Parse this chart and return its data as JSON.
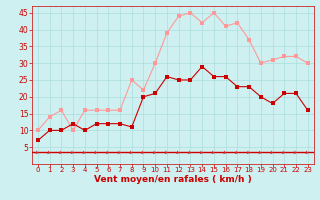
{
  "x": [
    0,
    1,
    2,
    3,
    4,
    5,
    6,
    7,
    8,
    9,
    10,
    11,
    12,
    13,
    14,
    15,
    16,
    17,
    18,
    19,
    20,
    21,
    22,
    23
  ],
  "vent_moyen": [
    7,
    10,
    10,
    12,
    10,
    12,
    12,
    12,
    11,
    20,
    21,
    26,
    25,
    25,
    29,
    26,
    26,
    23,
    23,
    20,
    18,
    21,
    21,
    16
  ],
  "rafales": [
    10,
    14,
    16,
    10,
    16,
    16,
    16,
    16,
    25,
    22,
    30,
    39,
    44,
    45,
    42,
    45,
    41,
    42,
    37,
    30,
    31,
    32,
    32,
    30
  ],
  "ylim": [
    0,
    47
  ],
  "xlim": [
    -0.5,
    23.5
  ],
  "yticks": [
    5,
    10,
    15,
    20,
    25,
    30,
    35,
    40,
    45
  ],
  "xticks": [
    0,
    1,
    2,
    3,
    4,
    5,
    6,
    7,
    8,
    9,
    10,
    11,
    12,
    13,
    14,
    15,
    16,
    17,
    18,
    19,
    20,
    21,
    22,
    23
  ],
  "xlabel": "Vent moyen/en rafales ( km/h )",
  "bg_color": "#cff0f0",
  "grid_color": "#aadddd",
  "line_moyen_color": "#cc0000",
  "line_rafales_color": "#ff9999",
  "marker_size": 2.5,
  "arrow_color": "#cc3333",
  "xlabel_color": "#cc0000",
  "tick_color": "#cc0000",
  "hline_color": "#cc0000",
  "hline_y": 3.5
}
